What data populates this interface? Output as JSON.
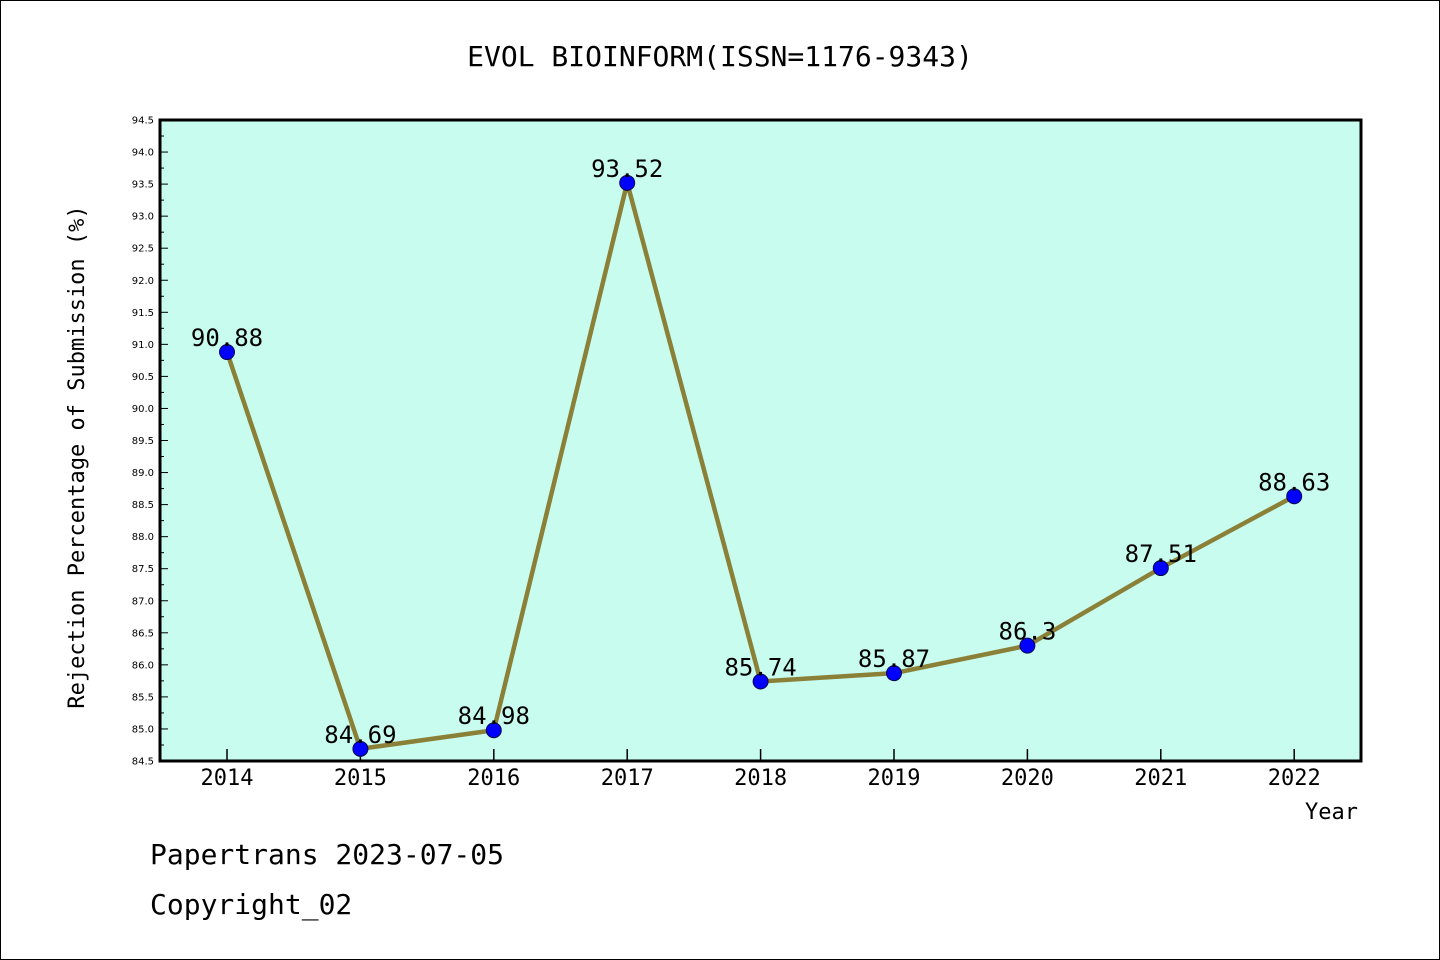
{
  "chart_data": {
    "type": "line",
    "title": "EVOL BIOINFORM(ISSN=1176-9343)",
    "xlabel": "Year",
    "ylabel": "Rejection Percentage of Submission (%)",
    "categories": [
      "2014",
      "2015",
      "2016",
      "2017",
      "2018",
      "2019",
      "2020",
      "2021",
      "2022"
    ],
    "values": [
      90.88,
      84.69,
      84.98,
      93.52,
      85.74,
      85.87,
      86.3,
      87.51,
      88.63
    ],
    "data_labels": [
      "90.88",
      "84.69",
      "84.98",
      "93.52",
      "85.74",
      "85.87",
      "86.3",
      "87.51",
      "88.63"
    ],
    "ylim": [
      84.5,
      94.5
    ],
    "yticks": [
      "84.5",
      "85.0",
      "85.5",
      "86.0",
      "86.5",
      "87.0",
      "87.5",
      "88.0",
      "88.5",
      "89.0",
      "89.5",
      "90.0",
      "90.5",
      "91.0",
      "91.5",
      "92.0",
      "92.5",
      "93.0",
      "93.5",
      "94.0",
      "94.5"
    ],
    "grid": false,
    "colors": {
      "plot_background": "#c8fcee",
      "line": "#8b8038",
      "marker": "#0000ff"
    }
  },
  "footer": {
    "line1": "Papertrans 2023-07-05",
    "line2": "Copyright_02"
  }
}
